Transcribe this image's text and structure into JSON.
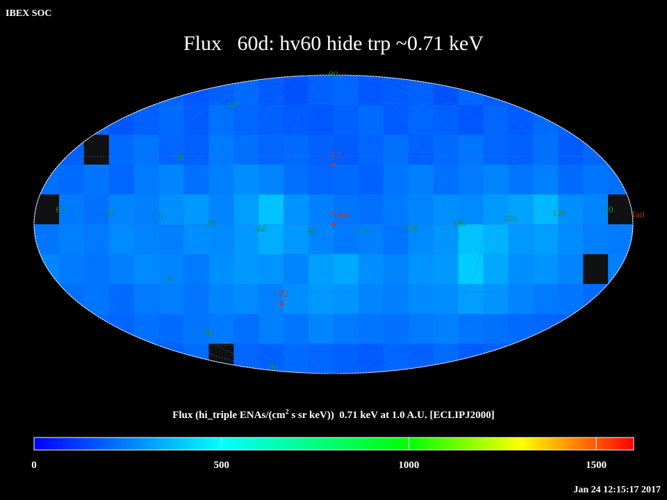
{
  "header": {
    "label": "IBEX SOC",
    "title": "Flux   60d: hv60 hide trp ~0.71 keV"
  },
  "map": {
    "lat_labels": [
      "90",
      "60",
      "30",
      "-30",
      "-60",
      "-90"
    ],
    "lon_labels": [
      "60",
      "30",
      "0",
      "-30",
      "-60",
      "-90",
      "-120",
      "-150",
      "180",
      "150",
      "120",
      "90"
    ],
    "markers": [
      "V1",
      "Nose",
      "V2",
      "Tail"
    ],
    "flux": [
      [
        150,
        170,
        190,
        160,
        180,
        200,
        170,
        190,
        210,
        180,
        160,
        190,
        200,
        170,
        180,
        190,
        160,
        200,
        180,
        170,
        190,
        160,
        180,
        150
      ],
      [
        null,
        180,
        200,
        170,
        190,
        210,
        180,
        220,
        200,
        190,
        180,
        170,
        190,
        210,
        180,
        200,
        190,
        170,
        200,
        180,
        210,
        190,
        170,
        null
      ],
      [
        200,
        190,
        null,
        210,
        230,
        200,
        190,
        240,
        220,
        200,
        210,
        190,
        180,
        200,
        220,
        190,
        210,
        230,
        200,
        190,
        220,
        180,
        200,
        190
      ],
      [
        220,
        210,
        230,
        200,
        240,
        260,
        220,
        250,
        280,
        260,
        220,
        200,
        210,
        190,
        230,
        250,
        220,
        240,
        260,
        230,
        250,
        210,
        230,
        220
      ],
      [
        null,
        240,
        220,
        260,
        250,
        280,
        300,
        260,
        310,
        380,
        290,
        250,
        230,
        220,
        240,
        260,
        280,
        270,
        300,
        320,
        360,
        280,
        260,
        null
      ],
      [
        230,
        250,
        240,
        270,
        260,
        250,
        280,
        270,
        300,
        340,
        300,
        260,
        240,
        250,
        230,
        270,
        290,
        380,
        350,
        300,
        310,
        270,
        250,
        240
      ],
      [
        260,
        240,
        230,
        250,
        270,
        260,
        240,
        280,
        300,
        290,
        260,
        310,
        330,
        280,
        260,
        290,
        300,
        400,
        330,
        280,
        290,
        260,
        null,
        250
      ],
      [
        null,
        220,
        230,
        210,
        240,
        250,
        230,
        260,
        270,
        250,
        280,
        300,
        290,
        260,
        250,
        270,
        280,
        310,
        290,
        260,
        240,
        230,
        210,
        200
      ],
      [
        200,
        190,
        210,
        200,
        220,
        210,
        230,
        240,
        220,
        250,
        230,
        260,
        240,
        230,
        220,
        240,
        250,
        230,
        220,
        210,
        200,
        190,
        210,
        200
      ],
      [
        180,
        170,
        190,
        180,
        200,
        190,
        210,
        null,
        200,
        190,
        210,
        200,
        190,
        180,
        200,
        190,
        210,
        180,
        190,
        170,
        180,
        160,
        170,
        180
      ]
    ]
  },
  "colorbar": {
    "label_parts": [
      "Flux (hi_triple ENAs/(cm",
      "2",
      " s sr keV))  0.71 keV at 1.0 A.U. [ECLIPJ2000]"
    ],
    "lim": [
      0,
      1600
    ],
    "ticks": [
      0,
      500,
      1000,
      1500
    ]
  },
  "timestamp": "Jan 24 12:15:17 2017"
}
